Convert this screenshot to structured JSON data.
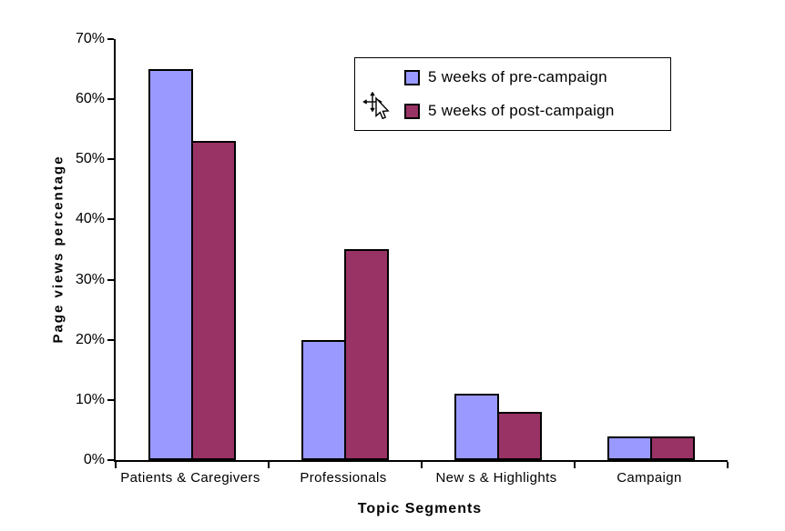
{
  "chart_data": {
    "type": "bar",
    "title": "",
    "categories": [
      "Patients & Caregivers",
      "Professionals",
      "New s & Highlights",
      "Campaign"
    ],
    "series": [
      {
        "name": "5 weeks of pre-campaign",
        "color": "#9999FF",
        "values": [
          65,
          20,
          11,
          4
        ]
      },
      {
        "name": "5 weeks of post-campaign",
        "color": "#993366",
        "values": [
          53,
          35,
          8,
          4
        ]
      }
    ],
    "xlabel": "Topic Segments",
    "ylabel": "Page views percentage",
    "ylim": [
      0,
      70
    ],
    "y_ticks": [
      {
        "label": "0%",
        "value": 0
      },
      {
        "label": "10%",
        "value": 10
      },
      {
        "label": "20%",
        "value": 20
      },
      {
        "label": "30%",
        "value": 30
      },
      {
        "label": "40%",
        "value": 40
      },
      {
        "label": "50%",
        "value": 50
      },
      {
        "label": "60%",
        "value": 60
      },
      {
        "label": "70%",
        "value": 70
      }
    ],
    "grid": false,
    "legend_position": "floating-top-right",
    "bar_border_color": "#000000",
    "axis_color": "#000000",
    "background": "#FFFFFF"
  },
  "cursor": {
    "icon": "move-pointer"
  }
}
